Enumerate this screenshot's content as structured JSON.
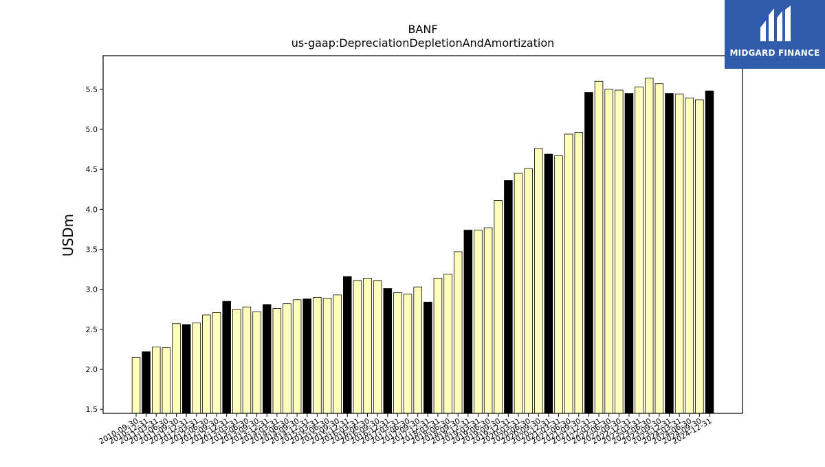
{
  "brand": {
    "logo_text": "MIDGARD FINANCE"
  },
  "chart_data": {
    "type": "bar",
    "title": "BANF",
    "subtitle": "us-gaap:DepreciationDepletionAndAmortization",
    "ylabel": "USDm",
    "xlabel": "",
    "ylim": [
      1.45,
      5.92
    ],
    "yticks": [
      1.5,
      2.0,
      2.5,
      3.0,
      3.5,
      4.0,
      4.5,
      5.0,
      5.5
    ],
    "grid": false,
    "colors": {
      "fill": "#ffffbb",
      "highlight": "#000000",
      "edge": "#000000"
    },
    "categories": [
      "2010-09-30",
      "2010-12-31",
      "2011-03-31",
      "2011-06-30",
      "2011-09-30",
      "2011-12-31",
      "2012-03-31",
      "2012-06-30",
      "2012-09-30",
      "2012-12-31",
      "2013-03-31",
      "2013-06-30",
      "2013-09-30",
      "2013-12-31",
      "2014-03-31",
      "2014-06-30",
      "2014-09-30",
      "2014-12-31",
      "2015-03-31",
      "2015-06-30",
      "2015-09-30",
      "2015-12-31",
      "2016-03-31",
      "2016-06-30",
      "2016-09-30",
      "2016-12-31",
      "2017-03-31",
      "2017-06-30",
      "2017-09-30",
      "2017-12-31",
      "2018-03-31",
      "2018-06-30",
      "2018-09-30",
      "2018-12-31",
      "2019-03-31",
      "2019-06-30",
      "2019-09-30",
      "2019-12-31",
      "2020-03-31",
      "2020-06-30",
      "2020-09-30",
      "2020-12-31",
      "2021-03-31",
      "2021-06-30",
      "2021-09-30",
      "2021-12-31",
      "2022-03-31",
      "2022-06-30",
      "2022-09-30",
      "2022-12-31",
      "2023-03-31",
      "2023-06-30",
      "2023-09-30",
      "2023-12-31",
      "2024-03-31",
      "2024-06-30",
      "2024-09-30",
      "2024-12-31"
    ],
    "values": [
      2.15,
      2.22,
      2.28,
      2.27,
      2.57,
      2.56,
      2.58,
      2.68,
      2.71,
      2.85,
      2.75,
      2.78,
      2.72,
      2.81,
      2.76,
      2.82,
      2.87,
      2.88,
      2.9,
      2.89,
      2.93,
      3.16,
      3.11,
      3.14,
      3.11,
      3.01,
      2.96,
      2.94,
      3.03,
      2.84,
      3.14,
      3.19,
      3.47,
      3.74,
      3.74,
      3.77,
      4.11,
      4.36,
      4.45,
      4.51,
      4.76,
      4.69,
      4.67,
      4.94,
      4.96,
      5.46,
      5.6,
      5.5,
      5.49,
      5.45,
      5.53,
      5.64,
      5.57,
      5.45,
      5.44,
      5.39,
      5.37,
      5.48
    ],
    "highlight_categories": [
      "2010-12-31",
      "2011-12-31",
      "2012-12-31",
      "2013-12-31",
      "2014-12-31",
      "2015-12-31",
      "2016-12-31",
      "2017-12-31",
      "2018-12-31",
      "2019-12-31",
      "2020-12-31",
      "2021-12-31",
      "2022-12-31",
      "2023-12-31",
      "2024-12-31"
    ]
  }
}
